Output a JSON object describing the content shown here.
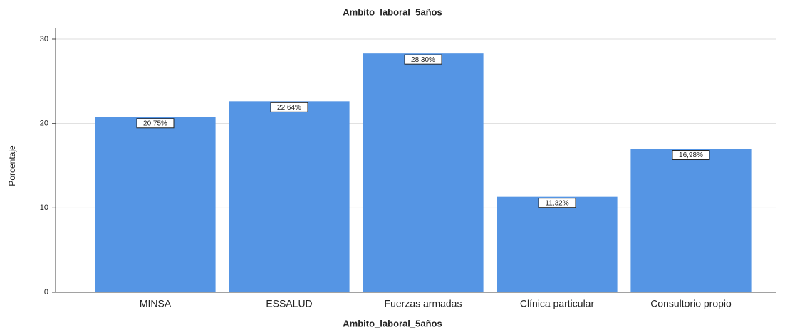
{
  "chart_data": {
    "type": "bar",
    "title": "Ambito_laboral_5años",
    "x_label": "Ambito_laboral_5años",
    "y_label": "Porcentaje",
    "categories": [
      "MINSA",
      "ESSALUD",
      "Fuerzas armadas",
      "Clínica particular",
      "Consultorio propio"
    ],
    "values": [
      20.75,
      22.64,
      28.3,
      11.32,
      16.98
    ],
    "value_labels": [
      "20,75%",
      "22,64%",
      "28,30%",
      "11,32%",
      "16,98%"
    ],
    "color": "#5595e4",
    "ylim": [
      0,
      30
    ],
    "yticks": [
      0,
      10,
      20,
      30
    ],
    "grid": true
  }
}
